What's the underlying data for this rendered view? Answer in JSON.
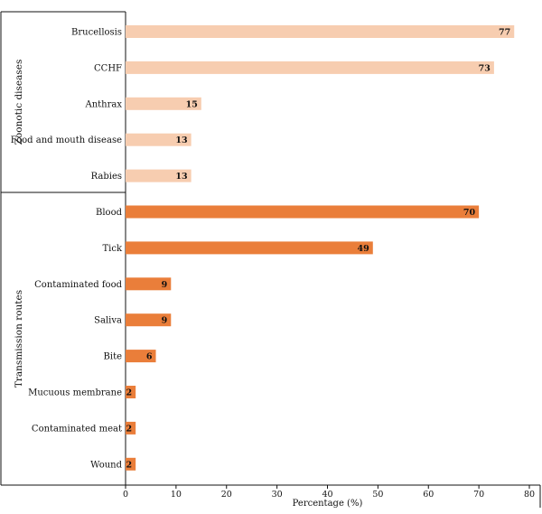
{
  "chart_data": {
    "type": "bar",
    "orientation": "horizontal",
    "xlabel": "Percentage (%)",
    "xlim": [
      0,
      80
    ],
    "xticks": [
      0,
      10,
      20,
      30,
      40,
      50,
      60,
      70,
      80
    ],
    "grid": false,
    "groups": [
      {
        "name": "Zoonotic diseases",
        "color": "#F7CDB0",
        "categories": [
          "Brucellosis",
          "CCHF",
          "Anthrax",
          "Food and mouth disease",
          "Rabies"
        ],
        "values": [
          77,
          73,
          15,
          13,
          13
        ]
      },
      {
        "name": "Transmission routes",
        "color": "#EA7E3A",
        "categories": [
          "Blood",
          "Tick",
          "Contaminated food",
          "Saliva",
          "Bite",
          "Mucuous membrane",
          "Contaminated meat",
          "Wound"
        ],
        "values": [
          70,
          49,
          9,
          9,
          6,
          2,
          2,
          2
        ]
      }
    ]
  }
}
